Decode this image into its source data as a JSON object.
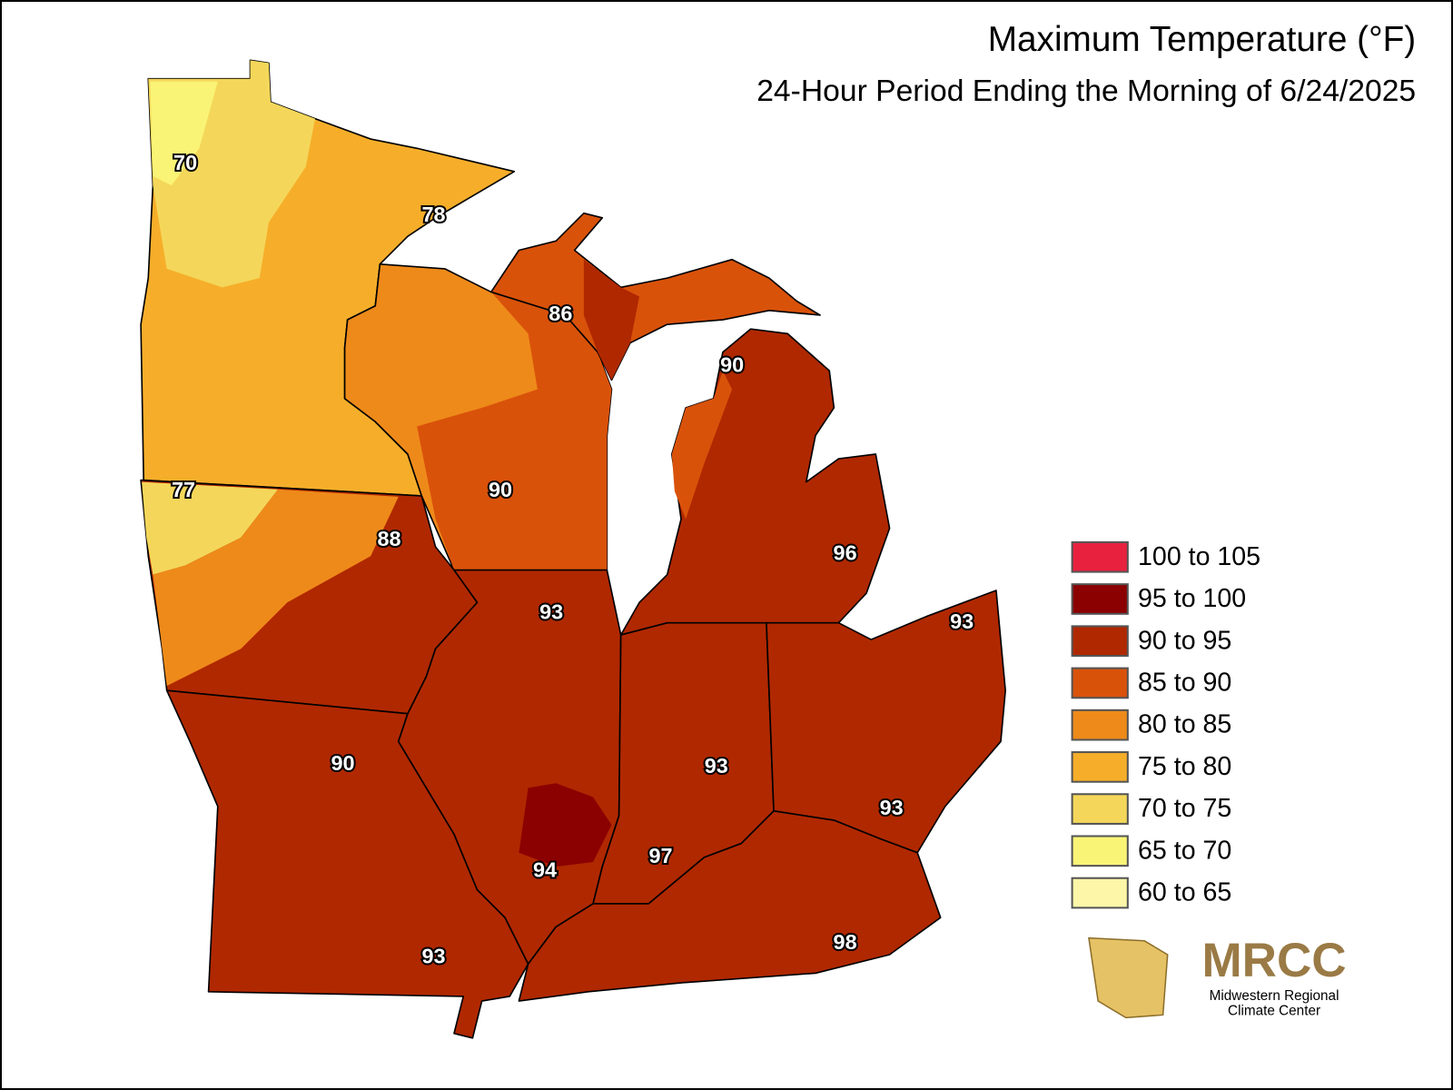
{
  "title": "Maximum Temperature (°F)",
  "subtitle": "24-Hour Period Ending the Morning of 6/24/2025",
  "legend": [
    {
      "label": "100 to 105",
      "color": "#e8213e"
    },
    {
      "label": "95 to 100",
      "color": "#8b0000"
    },
    {
      "label": "90 to 95",
      "color": "#b02800"
    },
    {
      "label": "85 to 90",
      "color": "#d9520a"
    },
    {
      "label": "80 to 85",
      "color": "#ee8a1a"
    },
    {
      "label": "75 to 80",
      "color": "#f6ae2a"
    },
    {
      "label": "70 to 75",
      "color": "#f4d75a"
    },
    {
      "label": "65 to 70",
      "color": "#faf476"
    },
    {
      "label": "60 to 65",
      "color": "#fdf6a8"
    }
  ],
  "station_labels": [
    "70",
    "78",
    "86",
    "90",
    "77",
    "90",
    "88",
    "96",
    "93",
    "93",
    "90",
    "93",
    "93",
    "97",
    "94",
    "98",
    "93"
  ],
  "logo": {
    "name": "MRCC",
    "line1": "Midwestern Regional",
    "line2": "Climate Center"
  }
}
